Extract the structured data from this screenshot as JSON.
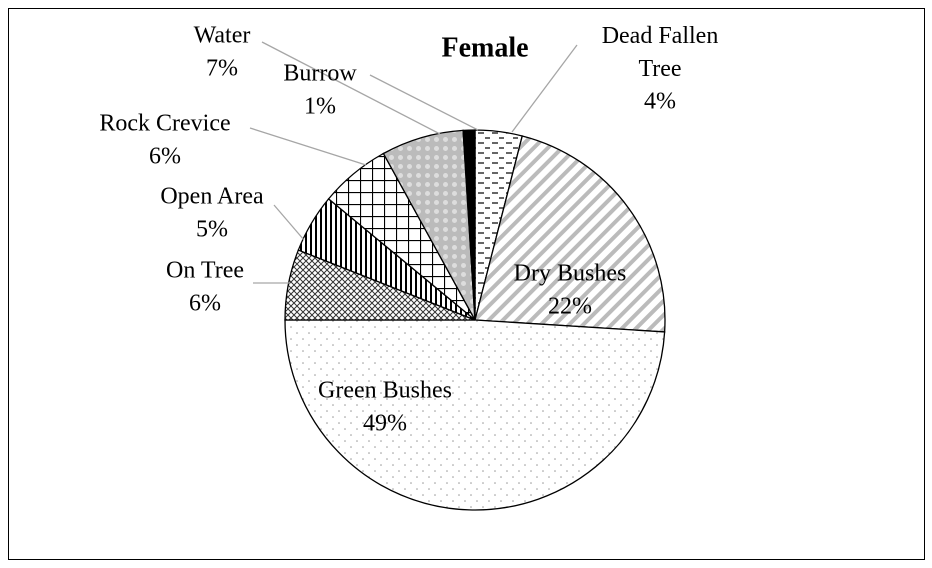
{
  "chart_data": {
    "type": "pie",
    "title": "Female",
    "categories": [
      "Dead Fallen Tree",
      "Dry Bushes",
      "Green Bushes",
      "On Tree",
      "Open Area",
      "Rock Crevice",
      "Water",
      "Burrow"
    ],
    "values": [
      4,
      22,
      49,
      6,
      5,
      6,
      7,
      1
    ],
    "value_labels": [
      "4%",
      "22%",
      "49%",
      "6%",
      "5%",
      "6%",
      "7%",
      "1%"
    ]
  }
}
